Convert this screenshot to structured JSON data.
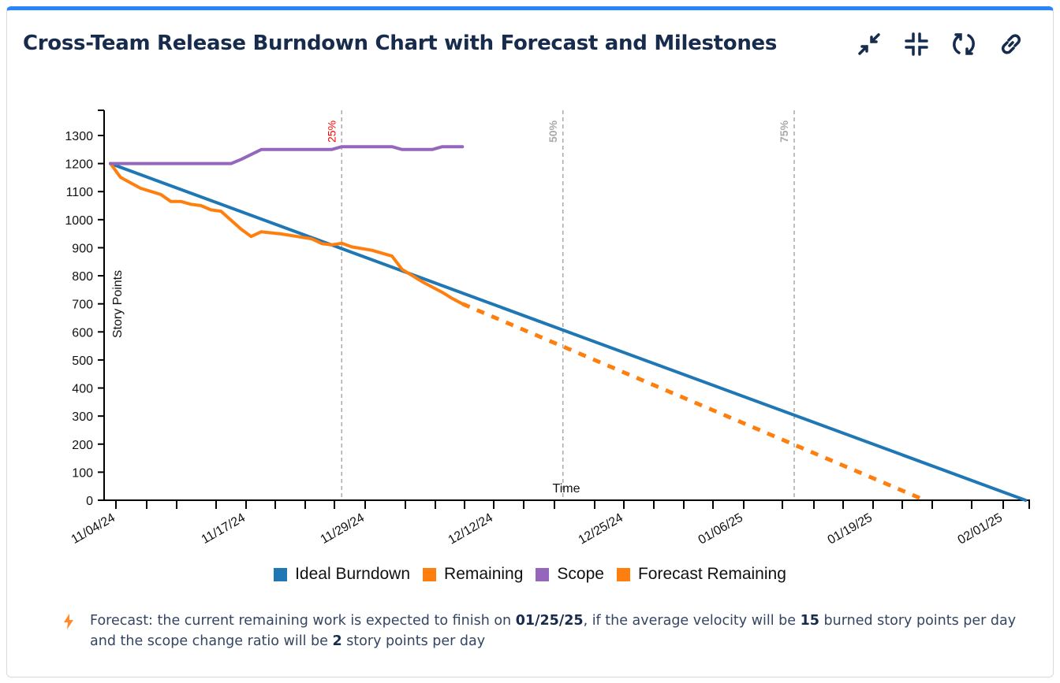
{
  "header": {
    "title": "Cross-Team Release Burndown Chart with Forecast and Milestones",
    "icons": [
      "collapse-arrows-icon",
      "minimize-icon",
      "refresh-icon",
      "link-icon"
    ]
  },
  "chart_data": {
    "type": "line",
    "xlabel": "Time",
    "ylabel": "Story Points",
    "ylim": [
      0,
      1300
    ],
    "yticks": [
      0,
      100,
      200,
      300,
      400,
      500,
      600,
      700,
      800,
      900,
      1000,
      1100,
      1200,
      1300
    ],
    "xlim": [
      "11/04/24",
      "02/03/25"
    ],
    "xtick_labels": [
      "11/04/24",
      "11/17/24",
      "11/29/24",
      "12/12/24",
      "12/25/24",
      "01/06/25",
      "01/19/25",
      "02/01/25"
    ],
    "grid": false,
    "legend_placement": "bottom",
    "series": [
      {
        "name": "Ideal Burndown",
        "color": "#1f77b4",
        "style": "solid",
        "points": [
          [
            "11/04/24",
            1200
          ],
          [
            "02/03/25",
            0
          ]
        ]
      },
      {
        "name": "Remaining",
        "color": "#ff7f0e",
        "style": "solid",
        "points": [
          [
            "11/04/24",
            1200
          ],
          [
            "11/05/24",
            1151
          ],
          [
            "11/07/24",
            1112
          ],
          [
            "11/09/24",
            1090
          ],
          [
            "11/10/24",
            1065
          ],
          [
            "11/11/24",
            1065
          ],
          [
            "11/12/24",
            1055
          ],
          [
            "11/13/24",
            1050
          ],
          [
            "11/14/24",
            1035
          ],
          [
            "11/15/24",
            1030
          ],
          [
            "11/17/24",
            966
          ],
          [
            "11/18/24",
            940
          ],
          [
            "11/19/24",
            957
          ],
          [
            "11/21/24",
            949
          ],
          [
            "11/24/24",
            932
          ],
          [
            "11/25/24",
            915
          ],
          [
            "11/26/24",
            910
          ],
          [
            "11/27/24",
            916
          ],
          [
            "11/28/24",
            903
          ],
          [
            "11/30/24",
            891
          ],
          [
            "12/02/24",
            870
          ],
          [
            "12/03/24",
            823
          ],
          [
            "12/05/24",
            779
          ],
          [
            "12/07/24",
            741
          ],
          [
            "12/08/24",
            719
          ],
          [
            "12/09/24",
            700
          ]
        ]
      },
      {
        "name": "Scope",
        "color": "#9467bd",
        "style": "solid",
        "points": [
          [
            "11/04/24",
            1200
          ],
          [
            "11/16/24",
            1200
          ],
          [
            "11/17/24",
            1215
          ],
          [
            "11/19/24",
            1250
          ],
          [
            "11/26/24",
            1250
          ],
          [
            "11/27/24",
            1260
          ],
          [
            "12/02/24",
            1260
          ],
          [
            "12/03/24",
            1250
          ],
          [
            "12/06/24",
            1250
          ],
          [
            "12/07/24",
            1260
          ],
          [
            "12/09/24",
            1260
          ]
        ]
      },
      {
        "name": "Forecast Remaining",
        "color": "#ff7f0e",
        "style": "dashed",
        "points": [
          [
            "12/09/24",
            700
          ],
          [
            "01/24/25",
            0
          ]
        ]
      }
    ],
    "milestones": [
      {
        "label": "25%",
        "date": "11/27/24",
        "color": "#ff0000"
      },
      {
        "label": "50%",
        "date": "12/19/24",
        "color": "#aaaaaa"
      },
      {
        "label": "75%",
        "date": "01/11/25",
        "color": "#aaaaaa"
      }
    ]
  },
  "forecast_note": {
    "icon": "lightning-icon",
    "text_1": "Forecast: the current remaining work is expected to finish on ",
    "finish_date": "01/25/25",
    "text_2": ", if the average velocity will be ",
    "velocity": "15",
    "text_3": " burned story points per day and the scope change ratio will be ",
    "scope_change": "2",
    "text_4": " story points per day"
  }
}
